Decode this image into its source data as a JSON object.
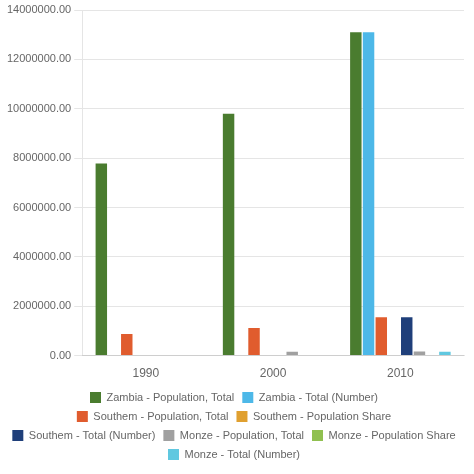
{
  "chart_data": {
    "type": "bar",
    "categories": [
      "1990",
      "2000",
      "2010"
    ],
    "series": [
      {
        "name": "Zambia - Population, Total",
        "color": "#4a7c2f",
        "values": [
          7780000,
          9800000,
          13100000
        ]
      },
      {
        "name": "Zambia - Total (Number)",
        "color": "#4db8e8",
        "values": [
          0,
          0,
          13100000
        ]
      },
      {
        "name": "Southem - Population, Total",
        "color": "#e05c2e",
        "values": [
          870000,
          1120000,
          1550000
        ]
      },
      {
        "name": "Southem - Population Share",
        "color": "#e0a030",
        "values": [
          0,
          0,
          0
        ]
      },
      {
        "name": "Southem - Total (Number)",
        "color": "#1f3f7a",
        "values": [
          0,
          0,
          1550000
        ]
      },
      {
        "name": "Monze - Population, Total",
        "color": "#a0a0a0",
        "values": [
          0,
          160000,
          170000
        ]
      },
      {
        "name": "Monze - Population Share",
        "color": "#90c050",
        "values": [
          0,
          0,
          0
        ]
      },
      {
        "name": "Monze - Total (Number)",
        "color": "#60c8e0",
        "values": [
          0,
          0,
          160000
        ]
      }
    ],
    "ylim": [
      0,
      14000000
    ],
    "yticks": [
      {
        "value": 0,
        "label": "0.00"
      },
      {
        "value": 2000000,
        "label": "2000000.00"
      },
      {
        "value": 4000000,
        "label": "4000000.00"
      },
      {
        "value": 6000000,
        "label": "6000000.00"
      },
      {
        "value": 8000000,
        "label": "8000000.00"
      },
      {
        "value": 10000000,
        "label": "10000000.00"
      },
      {
        "value": 12000000,
        "label": "12000000.00"
      },
      {
        "value": 14000000,
        "label": "14000000.00"
      }
    ],
    "grid": true,
    "legend": "bottom"
  }
}
